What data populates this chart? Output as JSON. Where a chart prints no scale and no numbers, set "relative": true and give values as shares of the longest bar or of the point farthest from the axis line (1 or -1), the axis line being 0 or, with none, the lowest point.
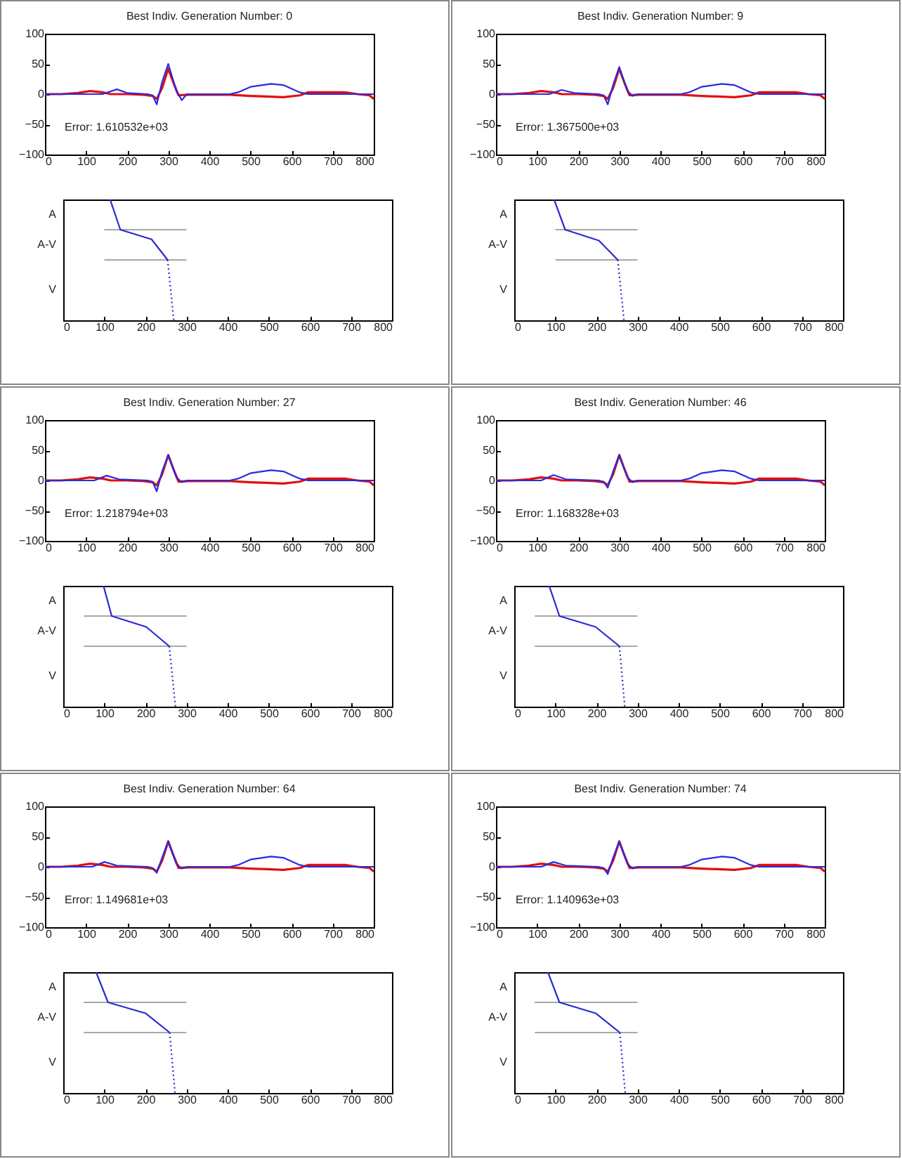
{
  "chart_data": [
    {
      "type": "line",
      "title": "Best Indiv. Generation Number:  0",
      "annotations": [
        "Error:  1.610532e+03"
      ],
      "xlim": [
        0,
        800
      ],
      "xticks": [
        0,
        100,
        200,
        300,
        400,
        500,
        600,
        700,
        800
      ],
      "ylim": [
        -100,
        100
      ],
      "yticks": [
        -100,
        -50,
        0,
        50,
        100
      ],
      "series": [
        {
          "color": "#e01010",
          "x": [
            0,
            40,
            80,
            110,
            140,
            160,
            200,
            240,
            262,
            272,
            285,
            300,
            312,
            325,
            350,
            400,
            450,
            500,
            540,
            580,
            620,
            640,
            700,
            730,
            760,
            790,
            800
          ],
          "values": [
            0,
            0,
            2,
            5,
            3,
            0,
            0,
            -1,
            -3,
            -8,
            10,
            42,
            20,
            -2,
            -1,
            -1,
            -1,
            -3,
            -4,
            -5,
            -2,
            3,
            3,
            3,
            0,
            -2,
            -8
          ]
        },
        {
          "color": "#2a2ae0",
          "x": [
            0,
            140,
            175,
            200,
            250,
            262,
            272,
            285,
            300,
            320,
            333,
            345,
            450,
            470,
            500,
            550,
            580,
            620,
            640,
            780,
            800
          ],
          "values": [
            0,
            0,
            8,
            2,
            0,
            -2,
            -17,
            20,
            50,
            5,
            -10,
            0,
            0,
            3,
            12,
            17,
            15,
            3,
            0,
            0,
            0
          ]
        }
      ]
    },
    {
      "type": "line",
      "relative": true,
      "xlim": [
        0,
        800
      ],
      "xticks": [
        0,
        100,
        200,
        300,
        400,
        500,
        600,
        700,
        800
      ],
      "annotations": [
        "A",
        "A-V",
        "V"
      ],
      "series": [
        {
          "color": "#a8a8a8",
          "x": [
            100,
            300
          ],
          "values": [
            0.75,
            0.75
          ]
        },
        {
          "color": "#a8a8a8",
          "x": [
            100,
            300
          ],
          "values": [
            0.5,
            0.5
          ]
        },
        {
          "color": "#2a2ad0",
          "x": [
            114,
            139,
            215,
            254
          ],
          "values": [
            1,
            0.75,
            0.67,
            0.5
          ]
        },
        {
          "color": "#2a2ad0",
          "line_style": "dotted",
          "x": [
            254,
            269
          ],
          "values": [
            0.5,
            0
          ]
        }
      ]
    },
    {
      "type": "line",
      "title": "Best Indiv. Generation Number:  9",
      "annotations": [
        "Error:  1.367500e+03"
      ],
      "xlim": [
        0,
        800
      ],
      "xticks": [
        0,
        100,
        200,
        300,
        400,
        500,
        600,
        700,
        800
      ],
      "ylim": [
        -100,
        100
      ],
      "yticks": [
        -100,
        -50,
        0,
        50,
        100
      ],
      "series": [
        {
          "color": "#e01010",
          "x": [
            0,
            40,
            80,
            110,
            140,
            160,
            200,
            240,
            262,
            272,
            285,
            300,
            312,
            325,
            350,
            400,
            450,
            500,
            540,
            580,
            620,
            640,
            700,
            730,
            760,
            790,
            800
          ],
          "values": [
            0,
            0,
            2,
            5,
            3,
            0,
            0,
            -1,
            -3,
            -8,
            10,
            42,
            20,
            -2,
            -1,
            -1,
            -1,
            -3,
            -4,
            -5,
            -2,
            3,
            3,
            3,
            0,
            -2,
            -8
          ]
        },
        {
          "color": "#2a2ae0",
          "x": [
            0,
            130,
            160,
            190,
            250,
            262,
            272,
            285,
            300,
            320,
            333,
            345,
            450,
            470,
            500,
            550,
            580,
            620,
            640,
            780,
            800
          ],
          "values": [
            0,
            0,
            7,
            2,
            0,
            -2,
            -17,
            15,
            45,
            5,
            -3,
            0,
            0,
            3,
            12,
            17,
            15,
            3,
            0,
            0,
            0
          ]
        }
      ]
    },
    {
      "type": "line",
      "relative": true,
      "xlim": [
        0,
        800
      ],
      "xticks": [
        0,
        100,
        200,
        300,
        400,
        500,
        600,
        700,
        800
      ],
      "annotations": [
        "A",
        "A-V",
        "V"
      ],
      "series": [
        {
          "color": "#a8a8a8",
          "x": [
            100,
            300
          ],
          "values": [
            0.75,
            0.75
          ]
        },
        {
          "color": "#a8a8a8",
          "x": [
            100,
            300
          ],
          "values": [
            0.5,
            0.5
          ]
        },
        {
          "color": "#2a2ad0",
          "x": [
            97,
            124,
            206,
            252
          ],
          "values": [
            1,
            0.75,
            0.66,
            0.5
          ]
        },
        {
          "color": "#2a2ad0",
          "line_style": "dotted",
          "x": [
            252,
            267
          ],
          "values": [
            0.5,
            0
          ]
        }
      ]
    },
    {
      "type": "line",
      "title": "Best Indiv. Generation Number:  27",
      "annotations": [
        "Error:  1.218794e+03"
      ],
      "xlim": [
        0,
        800
      ],
      "xticks": [
        0,
        100,
        200,
        300,
        400,
        500,
        600,
        700,
        800
      ],
      "ylim": [
        -100,
        100
      ],
      "yticks": [
        -100,
        -50,
        0,
        50,
        100
      ],
      "series": [
        {
          "color": "#e01010",
          "x": [
            0,
            40,
            80,
            110,
            140,
            160,
            200,
            240,
            262,
            272,
            285,
            300,
            312,
            325,
            350,
            400,
            450,
            500,
            540,
            580,
            620,
            640,
            700,
            730,
            760,
            790,
            800
          ],
          "values": [
            0,
            0,
            2,
            5,
            3,
            0,
            0,
            -1,
            -3,
            -8,
            10,
            42,
            20,
            -2,
            -1,
            -1,
            -1,
            -3,
            -4,
            -5,
            -2,
            3,
            3,
            3,
            0,
            -2,
            -8
          ]
        },
        {
          "color": "#2a2ae0",
          "x": [
            0,
            120,
            150,
            180,
            250,
            262,
            272,
            285,
            300,
            320,
            333,
            345,
            450,
            470,
            500,
            550,
            580,
            620,
            640,
            780,
            800
          ],
          "values": [
            0,
            0,
            8,
            2,
            0,
            -2,
            -18,
            15,
            42,
            5,
            -3,
            0,
            0,
            3,
            12,
            17,
            15,
            3,
            0,
            0,
            0
          ]
        }
      ]
    },
    {
      "type": "line",
      "relative": true,
      "xlim": [
        0,
        800
      ],
      "xticks": [
        0,
        100,
        200,
        300,
        400,
        500,
        600,
        700,
        800
      ],
      "annotations": [
        "A",
        "A-V",
        "V"
      ],
      "series": [
        {
          "color": "#a8a8a8",
          "x": [
            50,
            300
          ],
          "values": [
            0.75,
            0.75
          ]
        },
        {
          "color": "#a8a8a8",
          "x": [
            50,
            300
          ],
          "values": [
            0.5,
            0.5
          ]
        },
        {
          "color": "#2a2ad0",
          "x": [
            98,
            118,
            202,
            258
          ],
          "values": [
            1,
            0.75,
            0.66,
            0.5
          ]
        },
        {
          "color": "#2a2ad0",
          "line_style": "dotted",
          "x": [
            258,
            273
          ],
          "values": [
            0.5,
            0
          ]
        }
      ]
    },
    {
      "type": "line",
      "title": "Best Indiv. Generation Number:  46",
      "annotations": [
        "Error:  1.168328e+03"
      ],
      "xlim": [
        0,
        800
      ],
      "xticks": [
        0,
        100,
        200,
        300,
        400,
        500,
        600,
        700,
        800
      ],
      "ylim": [
        -100,
        100
      ],
      "yticks": [
        -100,
        -50,
        0,
        50,
        100
      ],
      "series": [
        {
          "color": "#e01010",
          "x": [
            0,
            40,
            80,
            110,
            140,
            160,
            200,
            240,
            262,
            272,
            285,
            300,
            312,
            325,
            350,
            400,
            450,
            500,
            540,
            580,
            620,
            640,
            700,
            730,
            760,
            790,
            800
          ],
          "values": [
            0,
            0,
            2,
            5,
            3,
            0,
            0,
            -1,
            -3,
            -8,
            10,
            42,
            20,
            -2,
            -1,
            -1,
            -1,
            -3,
            -4,
            -5,
            -2,
            3,
            3,
            3,
            0,
            -2,
            -8
          ]
        },
        {
          "color": "#2a2ae0",
          "x": [
            0,
            110,
            140,
            170,
            250,
            262,
            272,
            285,
            300,
            320,
            333,
            345,
            450,
            470,
            500,
            550,
            580,
            620,
            640,
            780,
            800
          ],
          "values": [
            0,
            0,
            9,
            2,
            0,
            -2,
            -12,
            15,
            42,
            5,
            -3,
            0,
            0,
            3,
            12,
            17,
            15,
            3,
            0,
            0,
            0
          ]
        }
      ]
    },
    {
      "type": "line",
      "relative": true,
      "xlim": [
        0,
        800
      ],
      "xticks": [
        0,
        100,
        200,
        300,
        400,
        500,
        600,
        700,
        800
      ],
      "annotations": [
        "A",
        "A-V",
        "V"
      ],
      "series": [
        {
          "color": "#a8a8a8",
          "x": [
            50,
            300
          ],
          "values": [
            0.75,
            0.75
          ]
        },
        {
          "color": "#a8a8a8",
          "x": [
            50,
            300
          ],
          "values": [
            0.5,
            0.5
          ]
        },
        {
          "color": "#2a2ad0",
          "x": [
            85,
            110,
            198,
            256
          ],
          "values": [
            1,
            0.75,
            0.66,
            0.5
          ]
        },
        {
          "color": "#2a2ad0",
          "line_style": "dotted",
          "x": [
            256,
            269
          ],
          "values": [
            0.5,
            0
          ]
        }
      ]
    },
    {
      "type": "line",
      "title": "Best Indiv. Generation Number:  64",
      "annotations": [
        "Error:  1.149681e+03"
      ],
      "xlim": [
        0,
        800
      ],
      "xticks": [
        0,
        100,
        200,
        300,
        400,
        500,
        600,
        700,
        800
      ],
      "ylim": [
        -100,
        100
      ],
      "yticks": [
        -100,
        -50,
        0,
        50,
        100
      ],
      "series": [
        {
          "color": "#e01010",
          "x": [
            0,
            40,
            80,
            110,
            140,
            160,
            200,
            240,
            262,
            272,
            285,
            300,
            312,
            325,
            350,
            400,
            450,
            500,
            540,
            580,
            620,
            640,
            700,
            730,
            760,
            790,
            800
          ],
          "values": [
            0,
            0,
            2,
            5,
            3,
            0,
            0,
            -1,
            -3,
            -8,
            10,
            42,
            20,
            -2,
            -1,
            -1,
            -1,
            -3,
            -4,
            -5,
            -2,
            3,
            3,
            3,
            0,
            -2,
            -8
          ]
        },
        {
          "color": "#2a2ae0",
          "x": [
            0,
            115,
            145,
            175,
            250,
            262,
            272,
            285,
            300,
            320,
            333,
            345,
            450,
            470,
            500,
            550,
            580,
            620,
            640,
            780,
            800
          ],
          "values": [
            0,
            0,
            8,
            2,
            0,
            -2,
            -10,
            15,
            42,
            5,
            -3,
            0,
            0,
            3,
            12,
            17,
            15,
            3,
            0,
            0,
            0
          ]
        }
      ]
    },
    {
      "type": "line",
      "relative": true,
      "xlim": [
        0,
        800
      ],
      "xticks": [
        0,
        100,
        200,
        300,
        400,
        500,
        600,
        700,
        800
      ],
      "annotations": [
        "A",
        "A-V",
        "V"
      ],
      "series": [
        {
          "color": "#a8a8a8",
          "x": [
            50,
            300
          ],
          "values": [
            0.75,
            0.75
          ]
        },
        {
          "color": "#a8a8a8",
          "x": [
            50,
            300
          ],
          "values": [
            0.5,
            0.5
          ]
        },
        {
          "color": "#2a2ad0",
          "x": [
            80,
            109,
            200,
            259
          ],
          "values": [
            1,
            0.75,
            0.66,
            0.5
          ]
        },
        {
          "color": "#2a2ad0",
          "line_style": "dotted",
          "x": [
            259,
            272
          ],
          "values": [
            0.5,
            0
          ]
        }
      ]
    },
    {
      "type": "line",
      "title": "Best Indiv. Generation Number:  74",
      "annotations": [
        "Error:  1.140963e+03"
      ],
      "xlim": [
        0,
        800
      ],
      "xticks": [
        0,
        100,
        200,
        300,
        400,
        500,
        600,
        700,
        800
      ],
      "ylim": [
        -100,
        100
      ],
      "yticks": [
        -100,
        -50,
        0,
        50,
        100
      ],
      "series": [
        {
          "color": "#e01010",
          "x": [
            0,
            40,
            80,
            110,
            140,
            160,
            200,
            240,
            262,
            272,
            285,
            300,
            312,
            325,
            350,
            400,
            450,
            500,
            540,
            580,
            620,
            640,
            700,
            730,
            760,
            790,
            800
          ],
          "values": [
            0,
            0,
            2,
            5,
            3,
            0,
            0,
            -1,
            -3,
            -8,
            10,
            42,
            20,
            -2,
            -1,
            -1,
            -1,
            -3,
            -4,
            -5,
            -2,
            3,
            3,
            3,
            0,
            -2,
            -8
          ]
        },
        {
          "color": "#2a2ae0",
          "x": [
            0,
            110,
            140,
            170,
            250,
            262,
            272,
            285,
            300,
            320,
            333,
            345,
            450,
            470,
            500,
            550,
            580,
            620,
            640,
            780,
            800
          ],
          "values": [
            0,
            0,
            8,
            2,
            0,
            -2,
            -12,
            15,
            42,
            5,
            -3,
            0,
            0,
            3,
            12,
            17,
            15,
            3,
            0,
            0,
            0
          ]
        }
      ]
    },
    {
      "type": "line",
      "relative": true,
      "xlim": [
        0,
        800
      ],
      "xticks": [
        0,
        100,
        200,
        300,
        400,
        500,
        600,
        700,
        800
      ],
      "annotations": [
        "A",
        "A-V",
        "V"
      ],
      "series": [
        {
          "color": "#a8a8a8",
          "x": [
            50,
            300
          ],
          "values": [
            0.75,
            0.75
          ]
        },
        {
          "color": "#a8a8a8",
          "x": [
            50,
            300
          ],
          "values": [
            0.5,
            0.5
          ]
        },
        {
          "color": "#2a2ad0",
          "x": [
            82,
            110,
            198,
            257
          ],
          "values": [
            1,
            0.75,
            0.66,
            0.5
          ]
        },
        {
          "color": "#2a2ad0",
          "line_style": "dotted",
          "x": [
            257,
            270
          ],
          "values": [
            0.5,
            0
          ]
        }
      ]
    }
  ]
}
